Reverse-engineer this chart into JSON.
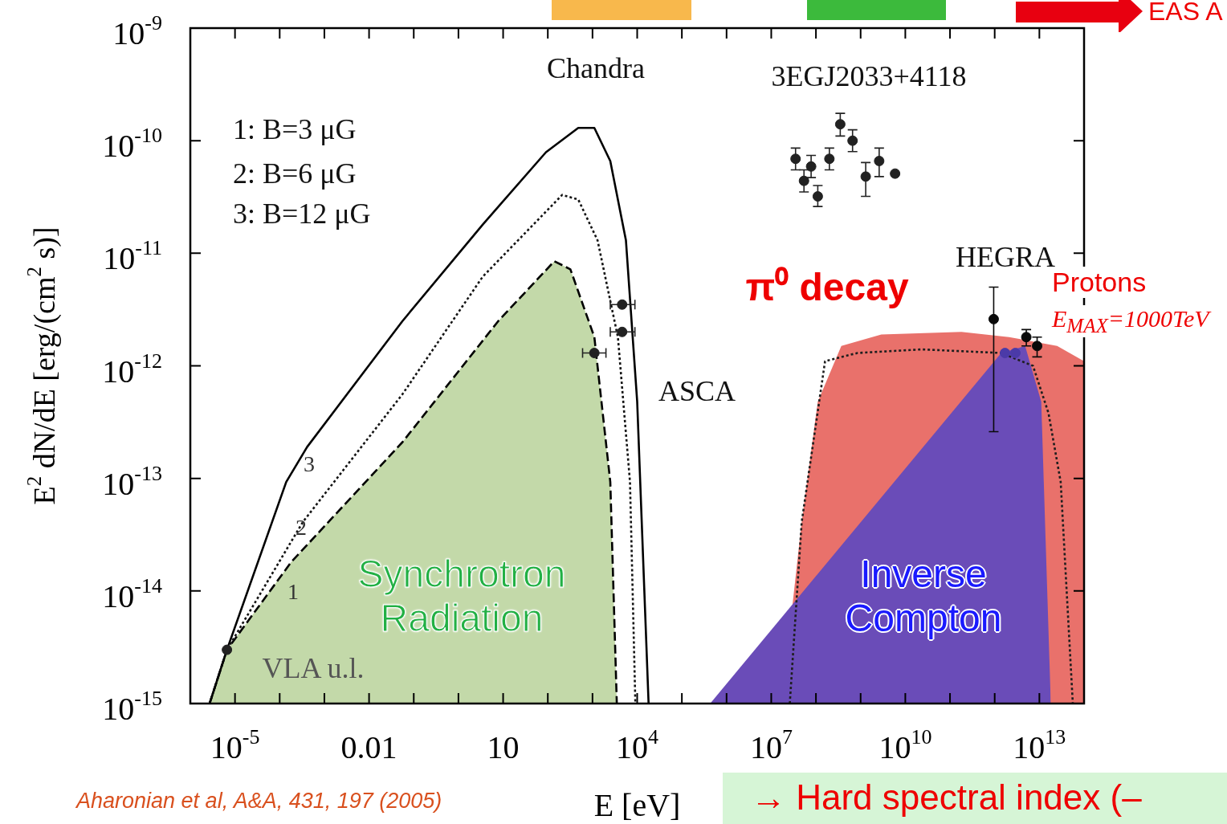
{
  "chart_data": {
    "type": "line",
    "log": "xy",
    "xlim": [
      1e-06,
      100000000000000.0
    ],
    "ylim": [
      1e-15,
      1e-09
    ],
    "xticks": [
      {
        "value": 1e-06,
        "label": null
      },
      {
        "value": 1e-05,
        "label": "10$^{-5}$"
      },
      {
        "value": 0.0001,
        "label": null
      },
      {
        "value": 0.001,
        "label": null
      },
      {
        "value": 0.01,
        "label": "0.01"
      },
      {
        "value": 0.1,
        "label": null
      },
      {
        "value": 1,
        "label": null
      },
      {
        "value": 10,
        "label": "10"
      },
      {
        "value": 100,
        "label": null
      },
      {
        "value": 1000,
        "label": null
      },
      {
        "value": 10000.0,
        "label": "10$^{4}$"
      },
      {
        "value": 100000.0,
        "label": null
      },
      {
        "value": 1000000.0,
        "label": null
      },
      {
        "value": 10000000.0,
        "label": "10$^{7}$"
      },
      {
        "value": 100000000.0,
        "label": null
      },
      {
        "value": 1000000000.0,
        "label": null
      },
      {
        "value": 10000000000.0,
        "label": "10$^{10}$"
      },
      {
        "value": 100000000000.0,
        "label": null
      },
      {
        "value": 1000000000000.0,
        "label": null
      },
      {
        "value": 10000000000000.0,
        "label": "10$^{13}$"
      },
      {
        "value": 100000000000000.0,
        "label": null
      }
    ],
    "yticks": [
      {
        "value": 1e-15,
        "label": "10$^{-15}$"
      },
      {
        "value": 1e-14,
        "label": "10$^{-14}$"
      },
      {
        "value": 1e-13,
        "label": "10$^{-13}$"
      },
      {
        "value": 1e-12,
        "label": "10$^{-12}$"
      },
      {
        "value": 1e-11,
        "label": "10$^{-11}$"
      },
      {
        "value": 1e-10,
        "label": "10$^{-10}$"
      },
      {
        "value": 1e-09,
        "label": "10$^{-9}$"
      }
    ],
    "xlabel": "E [eV]",
    "ylabel": "E$^{2}$ dN/dE [erg/(cm$^{2}$ s)]",
    "grid": false,
    "series": [
      {
        "type": "scatter",
        "color": "#222222",
        "marker": "circle",
        "x": [
          6.6e-06
        ],
        "values": [
          3e-15
        ]
      },
      {
        "type": "scatter",
        "color": "#4b3aa8",
        "marker": "circle",
        "x": [
          1700000000000.0,
          2900000000000.0
        ],
        "values": [
          1.3e-12,
          1.3e-12
        ]
      },
      {
        "type": "scatter",
        "color": "#0a0a0a",
        "marker": "circle",
        "x": [
          950000000000.0,
          5100000000000.0,
          8900000000000.0
        ],
        "values": [
          2.6e-12,
          1.8e-12,
          1.5e-12
        ],
        "errors": [
          [
            2.6e-13,
            5e-12
          ],
          [
            1.5e-12,
            2.1e-12
          ],
          [
            1.2e-12,
            1.8e-12
          ]
        ]
      },
      {
        "type": "scatter",
        "color": "#222222",
        "marker": "circle",
        "x": [
          1100,
          4600,
          4600
        ],
        "values": [
          1.3e-12,
          3.5e-12,
          2e-12
        ],
        "xerrors": [
          [
            600,
            2000
          ],
          [
            2500,
            8900
          ],
          [
            2500,
            8900
          ]
        ]
      },
      {
        "type": "scatter",
        "color": "#222222",
        "marker": "circle",
        "x": [
          35000000.0,
          54000000.0,
          78000000.0,
          110000000.0,
          200000000.0,
          350000000.0,
          660000000.0,
          1300000000.0,
          2600000000.0,
          5900000000.0
        ],
        "values": [
          6.9e-11,
          4.4e-11,
          5.9e-11,
          3.2e-11,
          6.9e-11,
          1.4e-10,
          1e-10,
          4.8e-11,
          6.6e-11,
          5.1e-11
        ],
        "errors": [
          [
            5.5e-11,
            8.6e-11
          ],
          [
            3.5e-11,
            5.5e-11
          ],
          [
            4.7e-11,
            7.4e-11
          ],
          [
            2.6e-11,
            4e-11
          ],
          [
            5.5e-11,
            8.6e-11
          ],
          [
            1.1e-10,
            1.75e-10
          ],
          [
            8e-11,
            1.25e-10
          ],
          [
            3.2e-11,
            6.4e-11
          ],
          [
            4.8e-11,
            8.6e-11
          ],
          null
        ]
      },
      {
        "type": "line",
        "color": "#000000",
        "line_style": "solid",
        "marker": "none",
        "x": [
          2.7e-06,
          6.6e-06,
          0.00014,
          0.00041,
          0.056,
          3.5,
          91,
          480,
          1100,
          2500,
          5600,
          10000.0,
          18000.0
        ],
        "values": [
          1e-15,
          3e-15,
          9.3e-14,
          1.9e-13,
          2.5e-12,
          1.8e-11,
          7.9e-11,
          1.3e-10,
          1.3e-10,
          6.6e-11,
          1.3e-11,
          4.8e-13,
          1e-15
        ]
      },
      {
        "type": "line",
        "color": "#141414",
        "line_style": "dotted",
        "marker": "none",
        "x": [
          2.7e-06,
          6.6e-06,
          0.00033,
          0.056,
          3.5,
          210,
          480,
          1300,
          3700,
          6900,
          9100
        ],
        "values": [
          1e-15,
          3e-15,
          4.1e-14,
          5.6e-13,
          6.2e-12,
          3.3e-11,
          3e-11,
          1.3e-11,
          1.8e-12,
          9.3e-14,
          1e-15
        ]
      },
      {
        "type": "area",
        "color": "#c3d9a9",
        "line_style": "dashed",
        "x": [
          2.7e-06,
          6.6e-06,
          0.00018,
          0.056,
          7.8,
          140,
          320,
          1100,
          2500,
          3500
        ],
        "values": [
          1e-15,
          3e-15,
          1.8e-14,
          2.1e-13,
          2.5e-12,
          8.5e-12,
          7.2e-12,
          1.8e-12,
          9.3e-14,
          1e-15
        ]
      },
      {
        "type": "line",
        "color": "#1e1e1e",
        "line_style": "dotted",
        "marker": "none",
        "x": [
          26000000.0,
          48000000.0,
          160000000.0,
          850000000.0,
          23000000000.0,
          1400000000000.0,
          7200000000000.0,
          16000000000000.0,
          30000000000000.0,
          56000000000000.0
        ],
        "values": [
          1e-15,
          4.1e-14,
          1.1e-12,
          1.3e-12,
          1.4e-12,
          1.3e-12,
          1e-12,
          3.8e-13,
          9.3e-14,
          1e-15
        ]
      },
      {
        "type": "area",
        "color": "#6a4cb8",
        "x": [
          430000.0,
          1400000000000.0,
          4800000000000.0,
          11000000000000.0,
          18000000000000.0
        ],
        "values": [
          1e-15,
          1.3e-12,
          1.5e-12,
          4.8e-13,
          1e-15
        ]
      },
      {
        "type": "area",
        "color": "#e9716b",
        "x": [
          17000000.0,
          48000000.0,
          110000000.0,
          370000000.0,
          2900000000.0,
          180000000000.0,
          2100000000000.0,
          25000000000000.0,
          100000000000000.0
        ],
        "values": [
          1e-15,
          4.1e-14,
          4.8e-13,
          1.5e-12,
          1.9e-12,
          2e-12,
          1.8e-12,
          1.5e-12,
          1.1e-12
        ]
      }
    ],
    "annotations": [
      "Chandra",
      "3EGJ2033+4118",
      "ASCA",
      "HEGRA",
      "VLA u.l.",
      "1",
      "2",
      "3",
      "π⁰ decay",
      "Synchrotron\nRadiation",
      "Inverse\nCompton",
      "1: B=3  μG",
      "2: B=6  μG",
      "3: B=12 μG",
      "Protons",
      "E$_{MAX}$=1000TeV",
      "Aharonian et al, A&A, 431, 197 (2005)",
      "→ Hard spectral index (–",
      "EAS A"
    ]
  }
}
